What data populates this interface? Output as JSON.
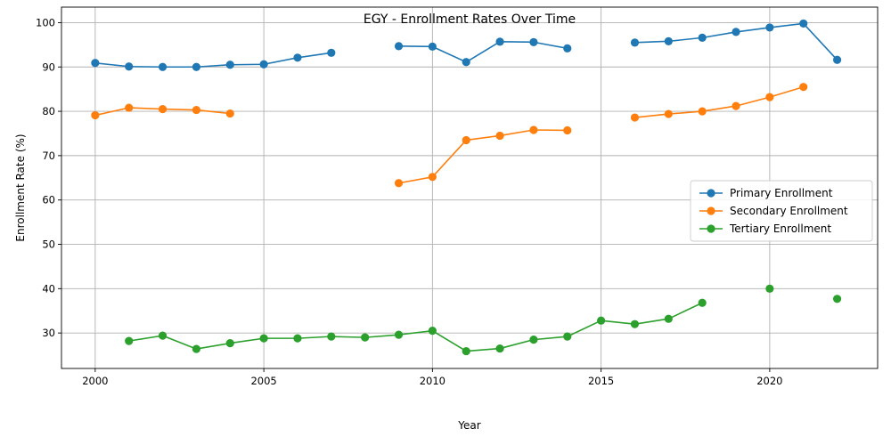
{
  "chart_data": {
    "type": "line",
    "title": "EGY - Enrollment Rates Over Time",
    "xlabel": "Year",
    "ylabel": "Enrollment Rate (%)",
    "xlim": [
      1999,
      2023.2
    ],
    "ylim": [
      22,
      103.5
    ],
    "xticks": [
      2000,
      2005,
      2010,
      2015,
      2020
    ],
    "yticks": [
      30,
      40,
      50,
      60,
      70,
      80,
      90,
      100
    ],
    "grid": true,
    "legend_position": "center-right",
    "x": [
      2000,
      2001,
      2002,
      2003,
      2004,
      2005,
      2006,
      2007,
      2008,
      2009,
      2010,
      2011,
      2012,
      2013,
      2014,
      2015,
      2016,
      2017,
      2018,
      2019,
      2020,
      2021,
      2022
    ],
    "series": [
      {
        "name": "Primary Enrollment",
        "color": "#1f77b4",
        "values": [
          90.9,
          90.1,
          90.0,
          90.0,
          90.5,
          90.6,
          92.1,
          93.2,
          null,
          94.7,
          94.6,
          91.1,
          95.7,
          95.6,
          94.2,
          null,
          95.5,
          95.8,
          96.6,
          97.9,
          98.9,
          99.8,
          91.6
        ]
      },
      {
        "name": "Secondary Enrollment",
        "color": "#ff7f0e",
        "values": [
          79.1,
          80.8,
          80.5,
          80.3,
          79.5,
          null,
          null,
          null,
          null,
          63.8,
          65.2,
          73.5,
          74.5,
          75.8,
          75.7,
          null,
          78.6,
          79.4,
          80.0,
          81.2,
          83.2,
          85.5,
          null
        ]
      },
      {
        "name": "Tertiary Enrollment",
        "color": "#2ca02c",
        "values": [
          null,
          28.2,
          29.4,
          26.4,
          27.7,
          28.8,
          28.8,
          29.2,
          29.0,
          29.6,
          30.5,
          25.9,
          26.5,
          28.5,
          29.2,
          32.8,
          32.0,
          33.2,
          36.8,
          null,
          40.0,
          null,
          37.7
        ]
      }
    ]
  }
}
